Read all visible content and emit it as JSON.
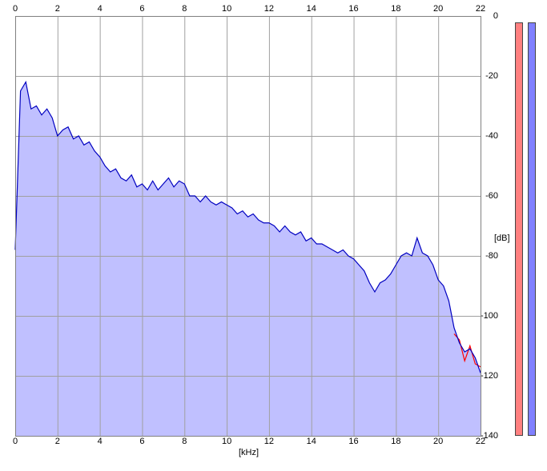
{
  "chart_data": {
    "type": "area",
    "x_label": "[kHz]",
    "y_label": "[dB]",
    "x": [
      0,
      0.25,
      0.5,
      0.75,
      1,
      1.25,
      1.5,
      1.75,
      2,
      2.25,
      2.5,
      2.75,
      3,
      3.25,
      3.5,
      3.75,
      4,
      4.25,
      4.5,
      4.75,
      5,
      5.25,
      5.5,
      5.75,
      6,
      6.25,
      6.5,
      6.75,
      7,
      7.25,
      7.5,
      7.75,
      8,
      8.25,
      8.5,
      8.75,
      9,
      9.25,
      9.5,
      9.75,
      10,
      10.25,
      10.5,
      10.75,
      11,
      11.25,
      11.5,
      11.75,
      12,
      12.25,
      12.5,
      12.75,
      13,
      13.25,
      13.5,
      13.75,
      14,
      14.25,
      14.5,
      14.75,
      15,
      15.25,
      15.5,
      15.75,
      16,
      16.25,
      16.5,
      16.75,
      17,
      17.25,
      17.5,
      17.75,
      18,
      18.25,
      18.5,
      18.75,
      19,
      19.25,
      19.5,
      19.75,
      20,
      20.25,
      20.5,
      20.75,
      21,
      21.25,
      21.5,
      21.75,
      22
    ],
    "series": [
      {
        "color": "#ff0000",
        "values": [
          null,
          null,
          null,
          null,
          null,
          null,
          null,
          null,
          null,
          null,
          null,
          null,
          null,
          null,
          null,
          null,
          null,
          null,
          null,
          null,
          null,
          null,
          null,
          null,
          null,
          null,
          null,
          null,
          null,
          null,
          null,
          null,
          null,
          null,
          null,
          null,
          null,
          null,
          null,
          null,
          null,
          null,
          null,
          null,
          null,
          null,
          null,
          null,
          null,
          null,
          null,
          null,
          null,
          null,
          null,
          null,
          null,
          null,
          null,
          null,
          null,
          null,
          null,
          null,
          null,
          null,
          null,
          null,
          null,
          null,
          null,
          null,
          null,
          null,
          null,
          null,
          null,
          null,
          null,
          null,
          null,
          null,
          null,
          -106,
          -108,
          -115,
          -110,
          -116,
          -117
        ]
      },
      {
        "color": "#0000c0",
        "fill": "#c0c0ff",
        "values": [
          -78,
          -25,
          -22,
          -31,
          -30,
          -33,
          -31,
          -34,
          -40,
          -38,
          -37,
          -41,
          -40,
          -43,
          -42,
          -45,
          -47,
          -50,
          -52,
          -51,
          -54,
          -55,
          -53,
          -57,
          -56,
          -58,
          -55,
          -58,
          -56,
          -54,
          -57,
          -55,
          -56,
          -60,
          -60,
          -62,
          -60,
          -62,
          -63,
          -62,
          -63,
          -64,
          -66,
          -65,
          -67,
          -66,
          -68,
          -69,
          -69,
          -70,
          -72,
          -70,
          -72,
          -73,
          -72,
          -75,
          -74,
          -76,
          -76,
          -77,
          -78,
          -79,
          -78,
          -80,
          -81,
          -83,
          -85,
          -89,
          -92,
          -89,
          -88,
          -86,
          -83,
          -80,
          -79,
          -80,
          -74,
          -79,
          -80,
          -83,
          -88,
          -90,
          -95,
          -104,
          -109,
          -112,
          -111,
          -114,
          -119
        ]
      }
    ],
    "xlim": [
      0,
      22
    ],
    "xticks": [
      0,
      2,
      4,
      6,
      8,
      10,
      12,
      14,
      16,
      18,
      20,
      22
    ],
    "ylim": [
      -140,
      0
    ],
    "yticks": [
      0,
      -20,
      -40,
      -60,
      -80,
      -100,
      -120,
      -140
    ],
    "grid": true
  }
}
